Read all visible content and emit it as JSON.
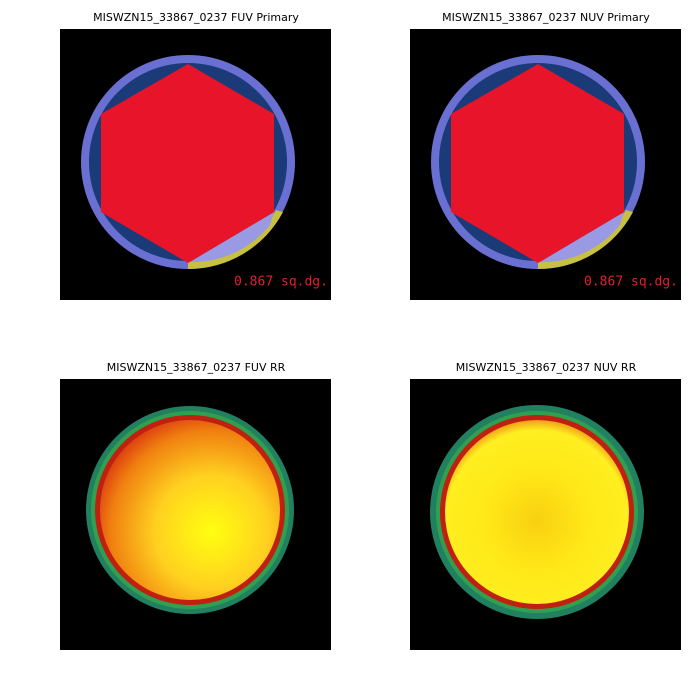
{
  "panels": [
    {
      "title": "MISWZN15_33867_0237 FUV Primary",
      "area_label": "0.867 sq.dg."
    },
    {
      "title": "MISWZN15_33867_0237 NUV Primary",
      "area_label": "0.867 sq.dg."
    },
    {
      "title": "MISWZN15_33867_0237 FUV RR"
    },
    {
      "title": "MISWZN15_33867_0237 NUV RR"
    }
  ]
}
